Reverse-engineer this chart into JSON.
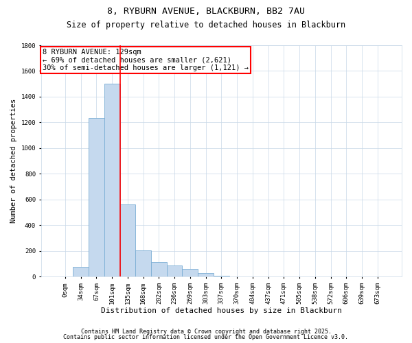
{
  "title": "8, RYBURN AVENUE, BLACKBURN, BB2 7AU",
  "subtitle": "Size of property relative to detached houses in Blackburn",
  "xlabel": "Distribution of detached houses by size in Blackburn",
  "ylabel": "Number of detached properties",
  "bar_color": "#c5d9ee",
  "bar_edge_color": "#7aadd4",
  "grid_color": "#c8d8e8",
  "background_color": "#ffffff",
  "categories": [
    "0sqm",
    "34sqm",
    "67sqm",
    "101sqm",
    "135sqm",
    "168sqm",
    "202sqm",
    "236sqm",
    "269sqm",
    "303sqm",
    "337sqm",
    "370sqm",
    "404sqm",
    "437sqm",
    "471sqm",
    "505sqm",
    "538sqm",
    "572sqm",
    "606sqm",
    "639sqm",
    "673sqm"
  ],
  "values": [
    0,
    75,
    1235,
    1500,
    560,
    205,
    115,
    90,
    60,
    30,
    10,
    5,
    5,
    0,
    0,
    0,
    0,
    0,
    0,
    0,
    0
  ],
  "ylim": [
    0,
    1800
  ],
  "yticks": [
    0,
    200,
    400,
    600,
    800,
    1000,
    1200,
    1400,
    1600,
    1800
  ],
  "annotation_line1": "8 RYBURN AVENUE: 129sqm",
  "annotation_line2": "← 69% of detached houses are smaller (2,621)",
  "annotation_line3": "30% of semi-detached houses are larger (1,121) →",
  "footer_line1": "Contains HM Land Registry data © Crown copyright and database right 2025.",
  "footer_line2": "Contains public sector information licensed under the Open Government Licence v3.0.",
  "red_line_bin_index": 3,
  "title_fontsize": 9.5,
  "subtitle_fontsize": 8.5,
  "axis_label_fontsize": 8,
  "tick_fontsize": 6.5,
  "annotation_fontsize": 7.5,
  "footer_fontsize": 6.0,
  "ylabel_fontsize": 7.5
}
